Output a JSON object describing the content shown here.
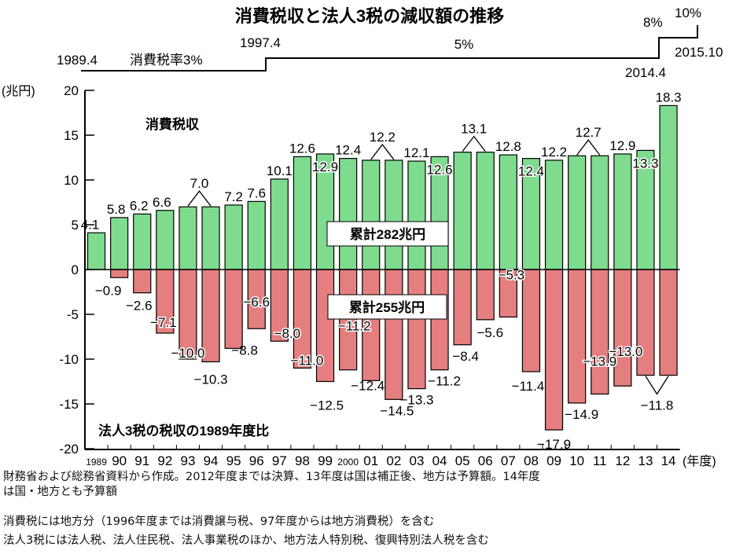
{
  "chart_data": {
    "type": "bar",
    "title": "消費税収と法人3税の減収額の推移",
    "ylabel": "(兆円)",
    "xlabel": "(年度)",
    "ylim": [
      -20,
      20
    ],
    "yticks": [
      20,
      15,
      10,
      5,
      0,
      -5,
      -10,
      -15,
      -20
    ],
    "categories": [
      "1989",
      "90",
      "91",
      "92",
      "93",
      "94",
      "95",
      "96",
      "97",
      "98",
      "99",
      "2000",
      "01",
      "02",
      "03",
      "04",
      "05",
      "06",
      "07",
      "08",
      "09",
      "10",
      "11",
      "12",
      "13",
      "14"
    ],
    "series": [
      {
        "name": "消費税収",
        "color": "#7fdc8f",
        "values": [
          4.1,
          5.8,
          6.2,
          6.6,
          7.0,
          7.0,
          7.2,
          7.6,
          10.1,
          12.6,
          12.9,
          12.4,
          12.2,
          12.2,
          12.1,
          12.6,
          13.1,
          13.1,
          12.8,
          12.4,
          12.2,
          12.7,
          12.7,
          12.9,
          13.3,
          18.3
        ]
      },
      {
        "name": "法人3税の税収の1989年度比",
        "color": "#e57f7f",
        "values": [
          0,
          -0.9,
          -2.6,
          -7.1,
          -10.0,
          -10.3,
          -8.8,
          -6.6,
          -8.0,
          -11.0,
          -12.5,
          -11.2,
          -12.4,
          -14.5,
          -13.3,
          -11.2,
          -8.4,
          -5.6,
          -5.3,
          -11.4,
          -17.9,
          -14.9,
          -13.9,
          -13.0,
          -11.8,
          -11.8
        ]
      }
    ],
    "grouped_labels": [
      {
        "series": "消費税収",
        "years": [
          "93",
          "94"
        ],
        "label": "7.0"
      },
      {
        "series": "消費税収",
        "years": [
          "01",
          "02"
        ],
        "label": "12.2"
      },
      {
        "series": "消費税収",
        "years": [
          "05",
          "06"
        ],
        "label": "13.1"
      },
      {
        "series": "消費税収",
        "years": [
          "10",
          "11"
        ],
        "label": "12.7"
      },
      {
        "series": "法人3税の税収の1989年度比",
        "years": [
          "13",
          "14"
        ],
        "label": "-11.8"
      }
    ],
    "annotations": {
      "green_series_label": "消費税収",
      "red_series_label": "法人3税の税収の1989年度比",
      "green_total": "累計282兆円",
      "red_total": "累計255兆円"
    },
    "tax_rate_timeline": [
      {
        "date": "1989.4",
        "label": "消費税率3%"
      },
      {
        "date": "1997.4",
        "label": "5%"
      },
      {
        "date": "2014.4",
        "label": "8%"
      },
      {
        "date": "2015.10",
        "label": "10%"
      }
    ],
    "grid": false,
    "legend": "none"
  },
  "notes": [
    "財務省および総務省資料から作成。2012年度までは決算、13年度は国は補正後、地方は予算額。14年度",
    "は国・地方とも予算額",
    "消費税には地方分（1996年度までは消費譲与税、97年度からは地方消費税）を含む",
    "法人3税には法人税、法人住民税、法人事業税のほか、地方法人特別税、復興特別法人税を含む"
  ]
}
